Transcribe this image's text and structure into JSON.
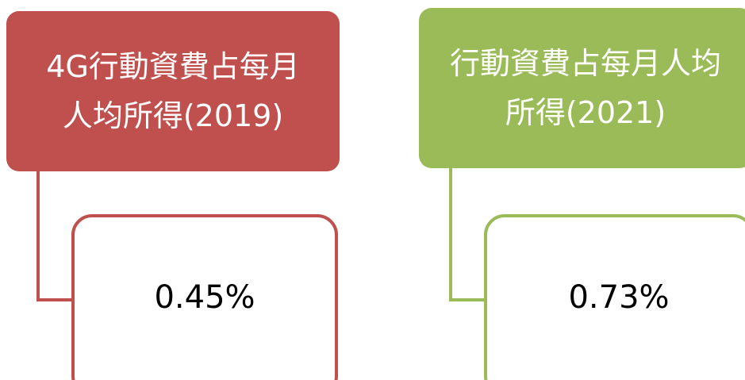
{
  "nodes": [
    {
      "lines": [
        "4G行動資費占每月",
        "人均所得(2019)"
      ],
      "color": "#c0504d",
      "children": [
        {
          "label": "0.45%"
        }
      ]
    },
    {
      "lines": [
        "行動資費占每月人均",
        "所得(2021)"
      ],
      "color": "#9bbb59",
      "children": [
        {
          "label": "0.73%"
        }
      ]
    }
  ]
}
